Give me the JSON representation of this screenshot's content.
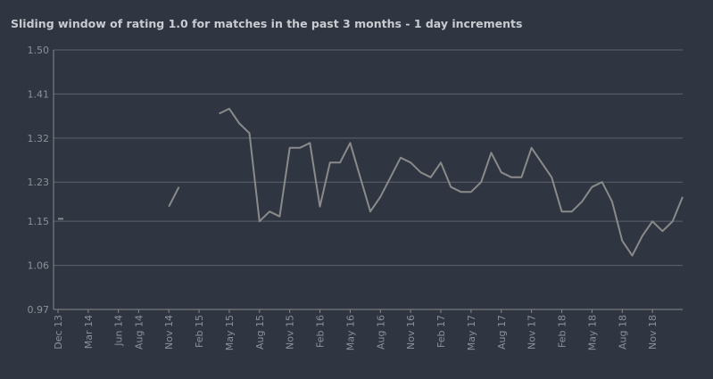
{
  "chart_data": {
    "type": "line",
    "title": "Sliding window of rating 1.0 for matches in the past 3 months - 1 day increments",
    "x": [
      "Dec 13",
      "Jan 14",
      "Feb 14",
      "Mar 14",
      "Apr 14",
      "May 14",
      "Jun 14",
      "Jul 14",
      "Aug 14",
      "Sep 14",
      "Oct 14",
      "Nov 14",
      "Dec 14",
      "Jan 15",
      "Feb 15",
      "Mar 15",
      "Apr 15",
      "May 15",
      "Jun 15",
      "Jul 15",
      "Aug 15",
      "Sep 15",
      "Oct 15",
      "Nov 15",
      "Dec 15",
      "Jan 16",
      "Feb 16",
      "Mar 16",
      "Apr 16",
      "May 16",
      "Jun 16",
      "Jul 16",
      "Aug 16",
      "Sep 16",
      "Oct 16",
      "Nov 16",
      "Dec 16",
      "Jan 17",
      "Feb 17",
      "Mar 17",
      "Apr 17",
      "May 17",
      "Jun 17",
      "Jul 17",
      "Aug 17",
      "Sep 17",
      "Oct 17",
      "Nov 17",
      "Dec 17",
      "Jan 18",
      "Feb 18",
      "Mar 18",
      "Apr 18",
      "May 18",
      "Jun 18",
      "Jul 18",
      "Aug 18",
      "Sep 18",
      "Oct 18",
      "Nov 18",
      "Dec 18",
      "Jan 19",
      "Feb 19"
    ],
    "series": [
      {
        "color": "#8a8a8a",
        "values": [
          1.155,
          null,
          null,
          null,
          null,
          null,
          null,
          null,
          null,
          null,
          null,
          1.18,
          1.22,
          null,
          null,
          null,
          1.37,
          1.38,
          1.35,
          1.33,
          1.15,
          1.17,
          1.16,
          1.3,
          1.3,
          1.31,
          1.18,
          1.27,
          1.27,
          1.31,
          1.24,
          1.17,
          1.2,
          1.24,
          1.28,
          1.27,
          1.25,
          1.24,
          1.27,
          1.22,
          1.21,
          1.21,
          1.23,
          1.29,
          1.25,
          1.24,
          1.24,
          1.3,
          1.27,
          1.24,
          1.17,
          1.17,
          1.19,
          1.22,
          1.23,
          1.19,
          1.11,
          1.08,
          1.12,
          1.15,
          1.13,
          1.15,
          1.2
        ]
      }
    ],
    "xticks": [
      "Dec 13",
      "Mar 14",
      "Jun 14",
      "Aug 14",
      "Nov 14",
      "Feb 15",
      "May 15",
      "Aug 15",
      "Nov 15",
      "Feb 16",
      "May 16",
      "Aug 16",
      "Nov 16",
      "Feb 17",
      "May 17",
      "Aug 17",
      "Nov 17",
      "Feb 18",
      "May 18",
      "Aug 18",
      "Nov 18"
    ],
    "ylim": [
      0.97,
      1.5
    ],
    "yticks": [
      0.97,
      1.06,
      1.15,
      1.23,
      1.32,
      1.41,
      {
        "value": 1.5,
        "label": "1.50"
      }
    ],
    "grid": true
  }
}
